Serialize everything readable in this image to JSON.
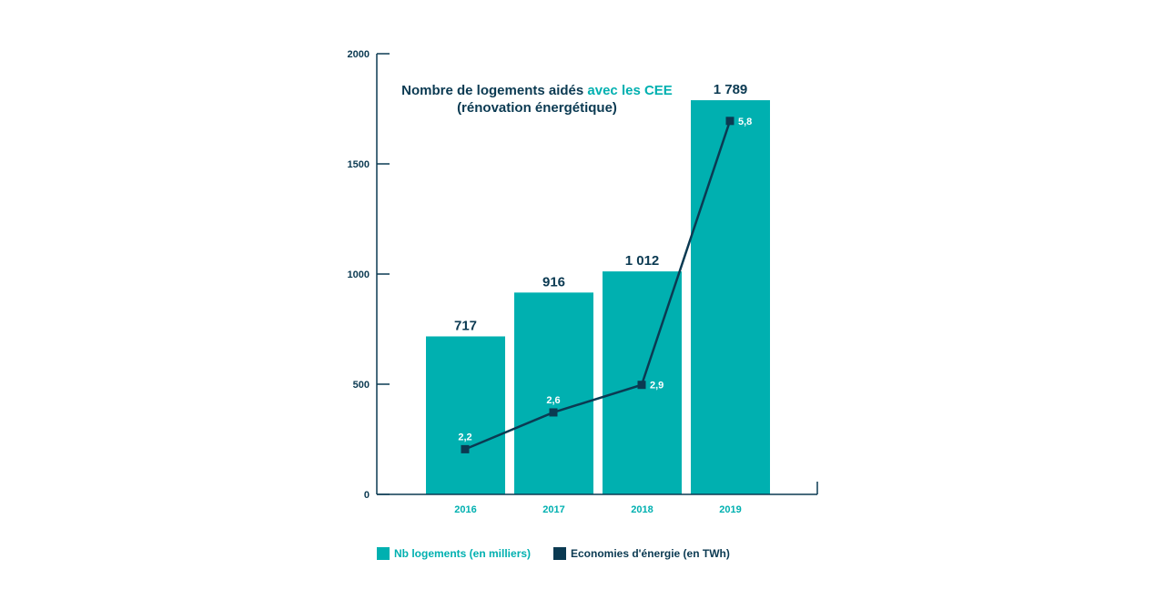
{
  "colors": {
    "bar": "#00b0b0",
    "line": "#0b3a52",
    "axis": "#0b3a52",
    "text_dark": "#0b3a52",
    "text_accent": "#00b0b0",
    "point_label": "#ffffff"
  },
  "title": {
    "part1": "Nombre de logements aidés ",
    "part2_accent": "avec les CEE",
    "line2": "(rénovation énergétique)"
  },
  "legend": {
    "bar_label": "Nb logements (en milliers)",
    "line_label": "Economies d'énergie (en TWh)"
  },
  "chart_data": {
    "type": "bar",
    "categories": [
      "2016",
      "2017",
      "2018",
      "2019"
    ],
    "series": [
      {
        "name": "Nb logements (en milliers)",
        "type": "bar",
        "values": [
          717,
          916,
          1012,
          1789
        ],
        "labels": [
          "717",
          "916",
          "1 012",
          "1 789"
        ]
      },
      {
        "name": "Economies d'énergie (en TWh)",
        "type": "line",
        "values": [
          2.2,
          2.6,
          2.9,
          5.8
        ],
        "plotted_on_left_axis": [
          205,
          372,
          497,
          1695
        ],
        "labels": [
          "2,2",
          "2,6",
          "2,9",
          "5,8"
        ]
      }
    ],
    "yticks": [
      "0",
      "500",
      "1000",
      "1500",
      "2000"
    ],
    "ylim": [
      0,
      2000
    ],
    "grid": false
  }
}
